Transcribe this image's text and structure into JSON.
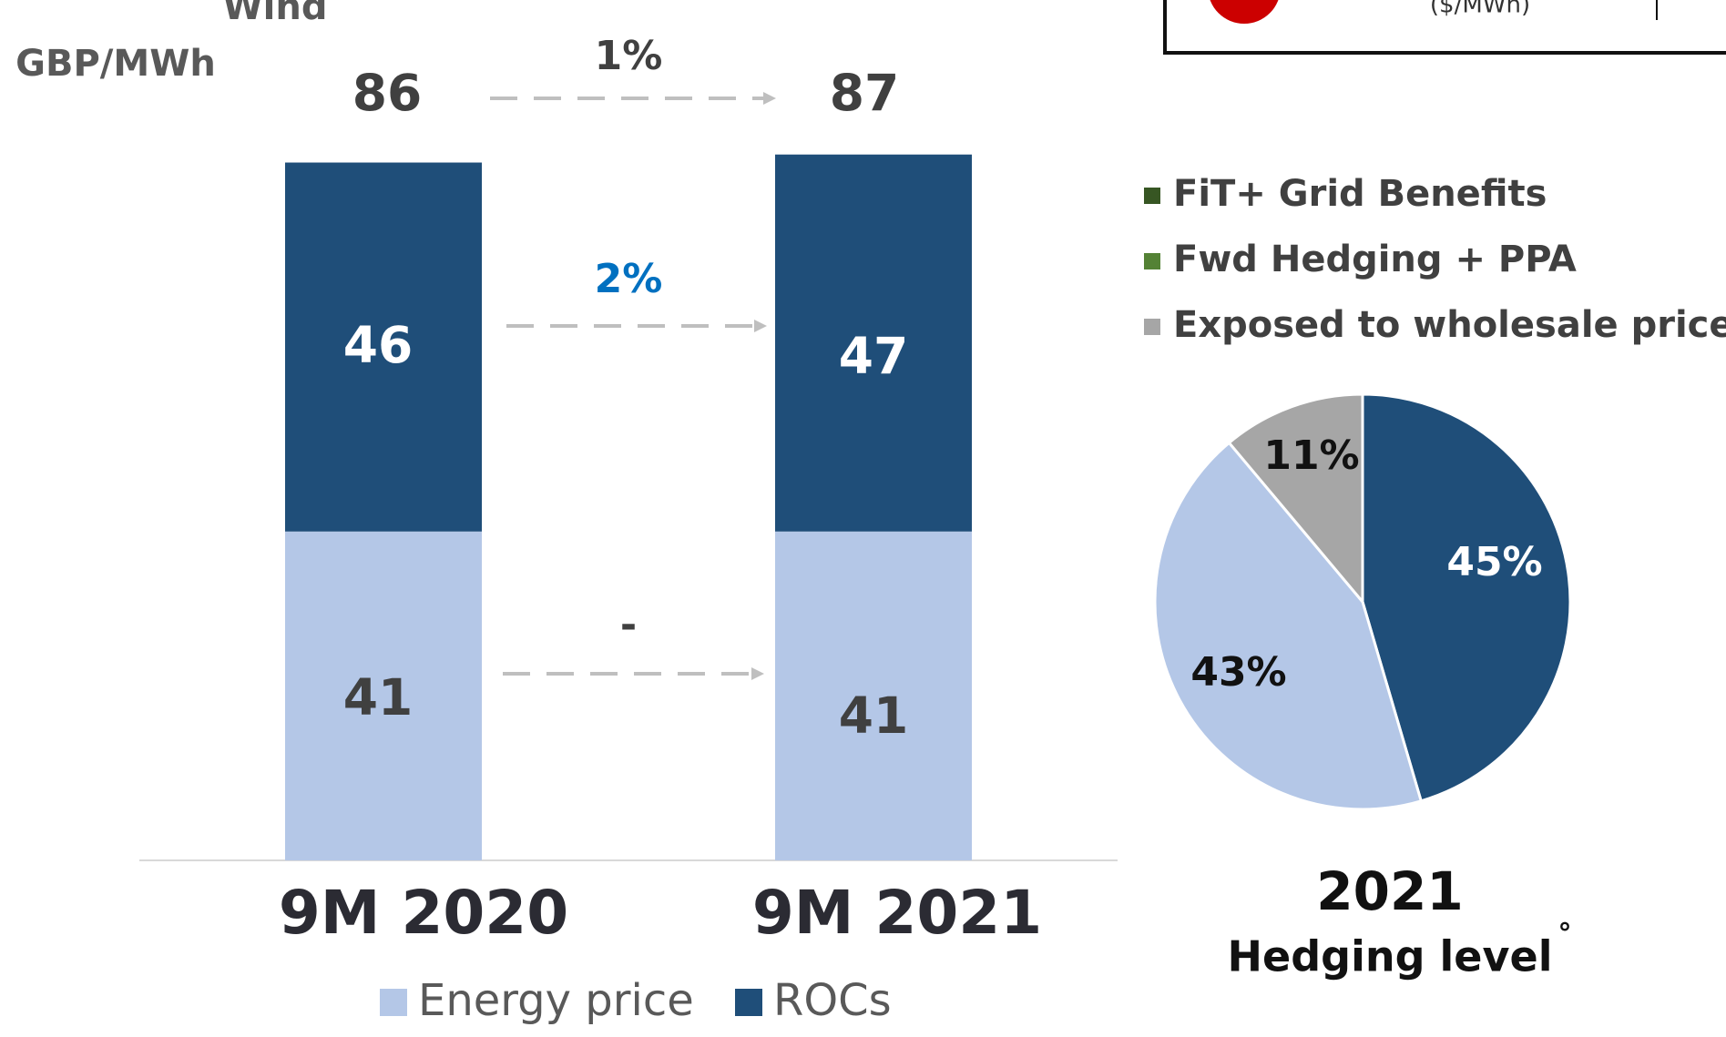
{
  "header": {
    "wind": "Wind",
    "unit": "GBP/MWh",
    "box_unit": "($/MWh)"
  },
  "chart_data": [
    {
      "type": "bar",
      "stacked": true,
      "categories": [
        "9M 2020",
        "9M 2021"
      ],
      "series": [
        {
          "name": "Energy price",
          "color": "#b4c7e7",
          "label_color": "#404040",
          "values": [
            41,
            41
          ]
        },
        {
          "name": "ROCs",
          "color": "#1f4e79",
          "label_color": "#ffffff",
          "values": [
            46,
            47
          ]
        }
      ],
      "totals": [
        86,
        87
      ],
      "annotations": [
        {
          "text": "1%",
          "color": "#404040"
        },
        {
          "text": "2%",
          "color": "#0070c0"
        },
        {
          "text": "-",
          "color": "#404040"
        }
      ]
    },
    {
      "type": "pie",
      "title": "2021",
      "subtitle": "Hedging level",
      "note": "°",
      "values": [
        45,
        43,
        11
      ],
      "value_labels": [
        "45%",
        "43%",
        "11%"
      ],
      "colors": [
        "#1f4e79",
        "#b4c7e7",
        "#a6a6a6"
      ],
      "label_colors": [
        "#ffffff",
        "#111111",
        "#111111"
      ],
      "legend": [
        {
          "name": "FiT+ Grid Benefits",
          "color": "#375623"
        },
        {
          "name": "Fwd Hedging + PPA",
          "color": "#548235"
        },
        {
          "name": "Exposed to wholesale price",
          "color": "#a6a6a6"
        }
      ]
    }
  ]
}
